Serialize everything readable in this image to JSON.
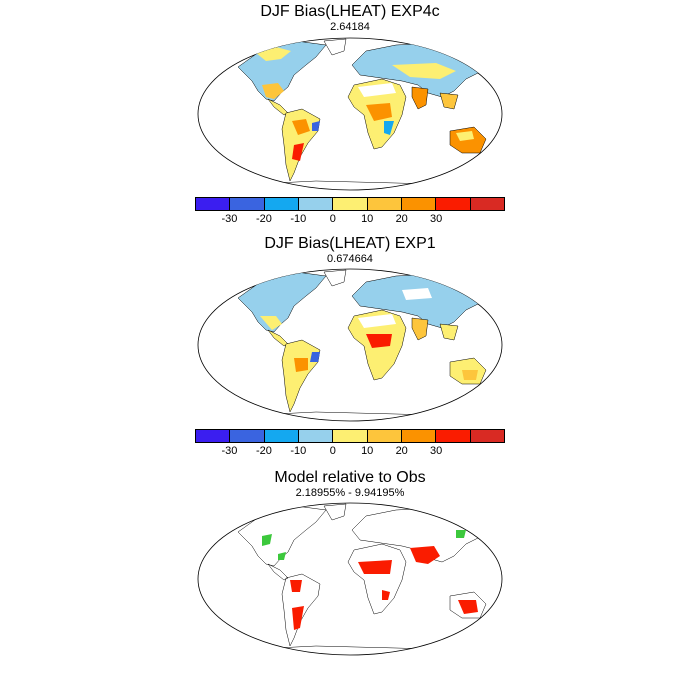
{
  "panels": [
    {
      "title": "DJF Bias(LHEAT) EXP4c",
      "subtitle": "2.64184",
      "colorbar": {
        "colors": [
          "#3b1ef0",
          "#3a64e0",
          "#14a8f0",
          "#96d0ec",
          "#fdef72",
          "#fdc53c",
          "#fb9200",
          "#fa1c00",
          "#d92a23"
        ],
        "labels": [
          "-30",
          "-20",
          "-10",
          "0",
          "10",
          "20",
          "30"
        ]
      }
    },
    {
      "title": "DJF Bias(LHEAT) EXP1",
      "subtitle": "0.674664",
      "colorbar": {
        "colors": [
          "#3b1ef0",
          "#3a64e0",
          "#14a8f0",
          "#96d0ec",
          "#fdef72",
          "#fdc53c",
          "#fb9200",
          "#fa1c00",
          "#d92a23"
        ],
        "labels": [
          "-30",
          "-20",
          "-10",
          "0",
          "10",
          "20",
          "30"
        ]
      }
    },
    {
      "title": "Model relative to Obs",
      "subtitle": "2.18955% - 9.94195%"
    }
  ]
}
